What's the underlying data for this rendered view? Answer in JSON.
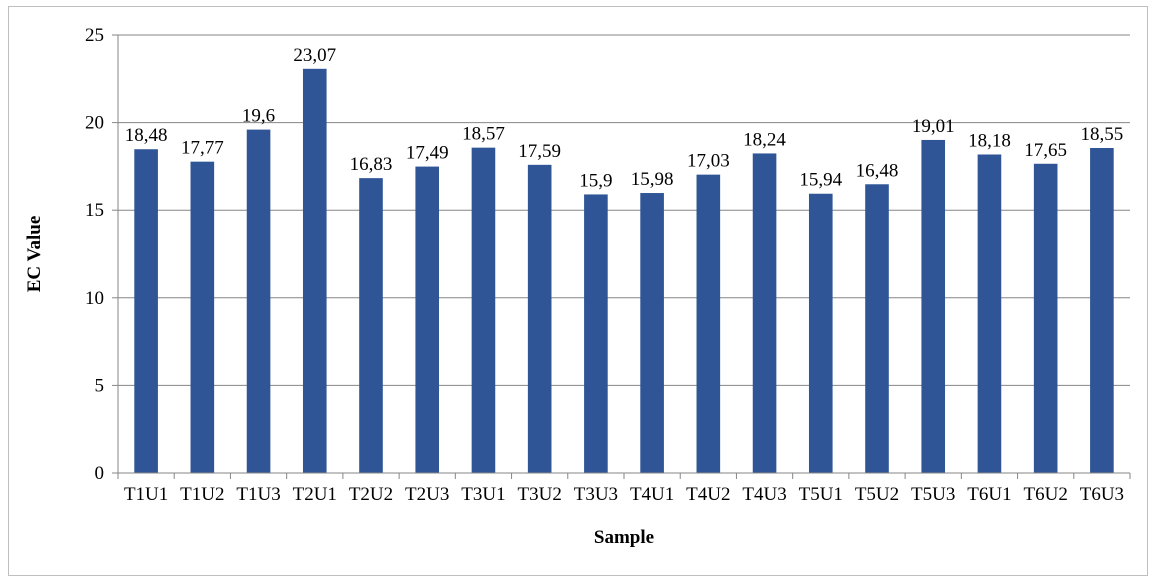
{
  "chart_data": {
    "type": "bar",
    "title": "",
    "xlabel": "Sample",
    "ylabel": "EC Value",
    "categories": [
      "T1U1",
      "T1U2",
      "T1U3",
      "T2U1",
      "T2U2",
      "T2U3",
      "T3U1",
      "T3U2",
      "T3U3",
      "T4U1",
      "T4U2",
      "T4U3",
      "T5U1",
      "T5U2",
      "T5U3",
      "T6U1",
      "T6U2",
      "T6U3"
    ],
    "values": [
      18.48,
      17.77,
      19.6,
      23.07,
      16.83,
      17.49,
      18.57,
      17.59,
      15.9,
      15.98,
      17.03,
      18.24,
      15.94,
      16.48,
      19.01,
      18.18,
      17.65,
      18.55
    ],
    "data_labels": [
      "18,48",
      "17,77",
      "19,6",
      "23,07",
      "16,83",
      "17,49",
      "18,57",
      "17,59",
      "15,9",
      "15,98",
      "17,03",
      "18,24",
      "15,94",
      "16,48",
      "19,01",
      "18,18",
      "17,65",
      "18,55"
    ],
    "yticks": [
      0,
      5,
      10,
      15,
      20,
      25
    ],
    "ylim": [
      0,
      25
    ],
    "grid": true,
    "legend": "none",
    "colors": {
      "bar": "#2f5597",
      "grid": "#868686",
      "axis": "#868686",
      "border": "#bfbfbf"
    }
  }
}
